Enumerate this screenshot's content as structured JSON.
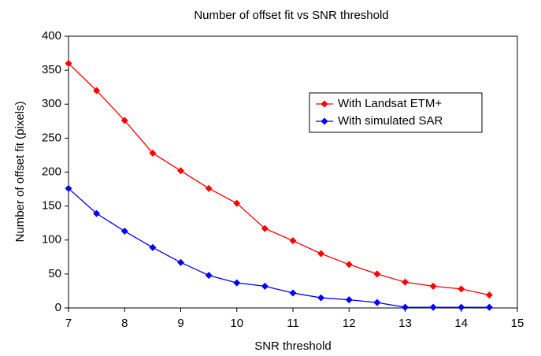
{
  "chart_data": {
    "type": "line",
    "title": "Number of offset fit  vs  SNR threshold",
    "x_label": "SNR threshold",
    "y_label": "Number of offset fit (pixels)",
    "x": [
      7,
      7.5,
      8,
      8.5,
      9,
      9.5,
      10,
      10.5,
      11,
      11.5,
      12,
      12.5,
      13,
      13.5,
      14,
      14.5
    ],
    "series": [
      {
        "name": "With Landsat ETM+",
        "color": "#ff0000",
        "values": [
          360,
          320,
          276,
          228,
          202,
          176,
          154,
          117,
          99,
          80,
          64,
          50,
          38,
          32,
          28,
          19
        ]
      },
      {
        "name": "With simulated SAR",
        "color": "#0000ff",
        "values": [
          176,
          139,
          113,
          89,
          67,
          48,
          37,
          32,
          22,
          15,
          12,
          8,
          1,
          1,
          1,
          1
        ]
      }
    ],
    "xlim": [
      7,
      15
    ],
    "xticks": [
      7,
      8,
      9,
      10,
      11,
      12,
      13,
      14,
      15
    ],
    "ylim": [
      0,
      400
    ],
    "yticks": [
      0,
      50,
      100,
      150,
      200,
      250,
      300,
      350,
      400
    ],
    "grid": false,
    "legend": "upper right"
  }
}
